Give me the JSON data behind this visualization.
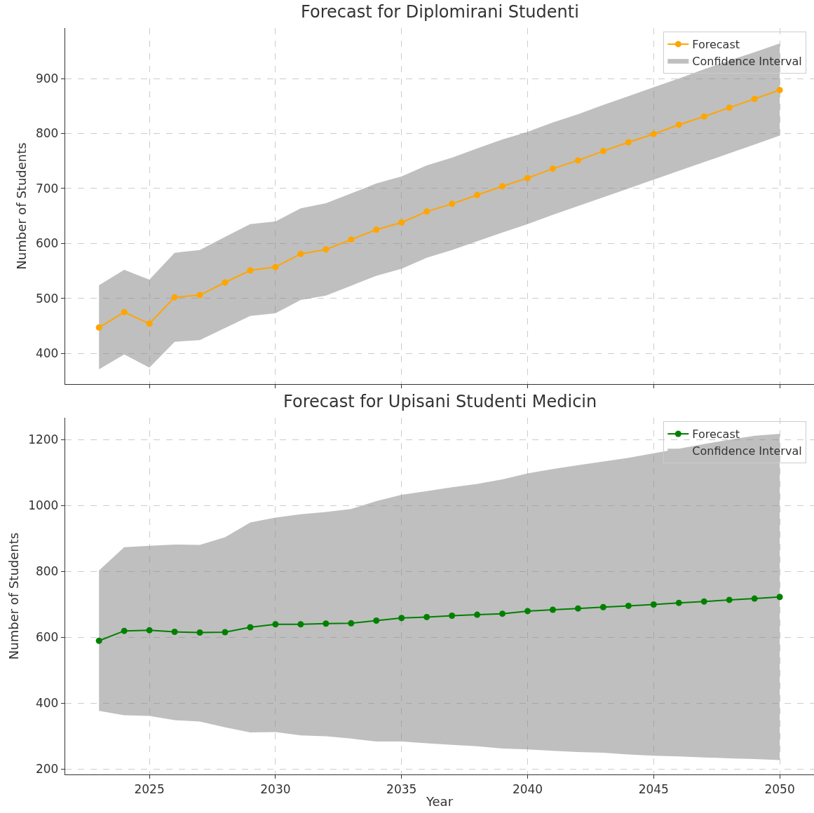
{
  "chart_data": [
    {
      "type": "line",
      "title": "Forecast for Diplomirani Studenti",
      "ylabel": "Number of Students",
      "x": [
        2023,
        2024,
        2025,
        2026,
        2027,
        2028,
        2029,
        2030,
        2031,
        2032,
        2033,
        2034,
        2035,
        2036,
        2037,
        2038,
        2039,
        2040,
        2041,
        2042,
        2043,
        2044,
        2045,
        2046,
        2047,
        2048,
        2049,
        2050
      ],
      "series": [
        {
          "name": "Forecast",
          "color": "#ffa500",
          "values": [
            447,
            475,
            454,
            502,
            506,
            529,
            551,
            557,
            581,
            589,
            607,
            625,
            638,
            658,
            672,
            688,
            704,
            719,
            736,
            751,
            768,
            784,
            799,
            816,
            831,
            847,
            863,
            879
          ],
          "lower": [
            371,
            398,
            374,
            421,
            424,
            446,
            468,
            473,
            497,
            505,
            523,
            541,
            554,
            574,
            588,
            604,
            620,
            635,
            652,
            668,
            684,
            700,
            716,
            732,
            748,
            764,
            780,
            796
          ],
          "upper": [
            524,
            552,
            534,
            583,
            588,
            612,
            635,
            640,
            664,
            673,
            691,
            709,
            722,
            742,
            756,
            773,
            789,
            803,
            820,
            835,
            852,
            868,
            884,
            900,
            917,
            933,
            948,
            964
          ]
        },
        {
          "name": "Confidence Interval",
          "type": "area",
          "color": "#bfbfbf",
          "values": [
            null,
            null,
            null,
            null,
            null,
            null,
            null,
            null,
            null,
            null,
            null,
            null,
            null,
            null,
            null,
            null,
            null,
            null,
            null,
            null,
            null,
            null,
            null,
            null,
            null,
            null,
            null,
            null
          ]
        }
      ],
      "xlim": [
        2021.66,
        2051.36
      ],
      "xticks": [
        2025,
        2030,
        2035,
        2040,
        2045,
        2050
      ],
      "ylim": [
        344,
        992
      ],
      "yticks": [
        400,
        500,
        600,
        700,
        800,
        900
      ],
      "tick_labels": "y",
      "grid": true,
      "legend": "top right",
      "marker": "circle",
      "line_style": "solid"
    },
    {
      "type": "line",
      "title": "Forecast for Upisani Studenti Medicin",
      "xlabel": "Year",
      "ylabel": "Number of Students",
      "x": [
        2023,
        2024,
        2025,
        2026,
        2027,
        2028,
        2029,
        2030,
        2031,
        2032,
        2033,
        2034,
        2035,
        2036,
        2037,
        2038,
        2039,
        2040,
        2041,
        2042,
        2043,
        2044,
        2045,
        2046,
        2047,
        2048,
        2049,
        2050
      ],
      "series": [
        {
          "name": "Forecast",
          "color": "#008000",
          "values": [
            589,
            619,
            621,
            616,
            614,
            615,
            630,
            639,
            639,
            641,
            642,
            650,
            658,
            661,
            665,
            668,
            671,
            679,
            683,
            687,
            691,
            695,
            699,
            704,
            708,
            713,
            717,
            722
          ],
          "lower": [
            376,
            363,
            361,
            348,
            344,
            326,
            311,
            312,
            302,
            299,
            292,
            283,
            283,
            278,
            273,
            269,
            262,
            259,
            255,
            251,
            249,
            244,
            240,
            238,
            235,
            232,
            230,
            227
          ],
          "upper": [
            802,
            873,
            877,
            881,
            880,
            903,
            948,
            963,
            973,
            980,
            989,
            1013,
            1032,
            1043,
            1055,
            1065,
            1079,
            1097,
            1110,
            1122,
            1133,
            1144,
            1158,
            1172,
            1186,
            1199,
            1211,
            1217
          ]
        },
        {
          "name": "Confidence Interval",
          "type": "area",
          "color": "#bfbfbf",
          "values": [
            null,
            null,
            null,
            null,
            null,
            null,
            null,
            null,
            null,
            null,
            null,
            null,
            null,
            null,
            null,
            null,
            null,
            null,
            null,
            null,
            null,
            null,
            null,
            null,
            null,
            null,
            null,
            null
          ]
        }
      ],
      "xlim": [
        2021.66,
        2051.36
      ],
      "xticks": [
        2025,
        2030,
        2035,
        2040,
        2045,
        2050
      ],
      "ylim": [
        183,
        1266
      ],
      "yticks": [
        200,
        400,
        600,
        800,
        1000,
        1200
      ],
      "grid": true,
      "legend": "top right",
      "marker": "circle",
      "line_style": "solid"
    }
  ]
}
